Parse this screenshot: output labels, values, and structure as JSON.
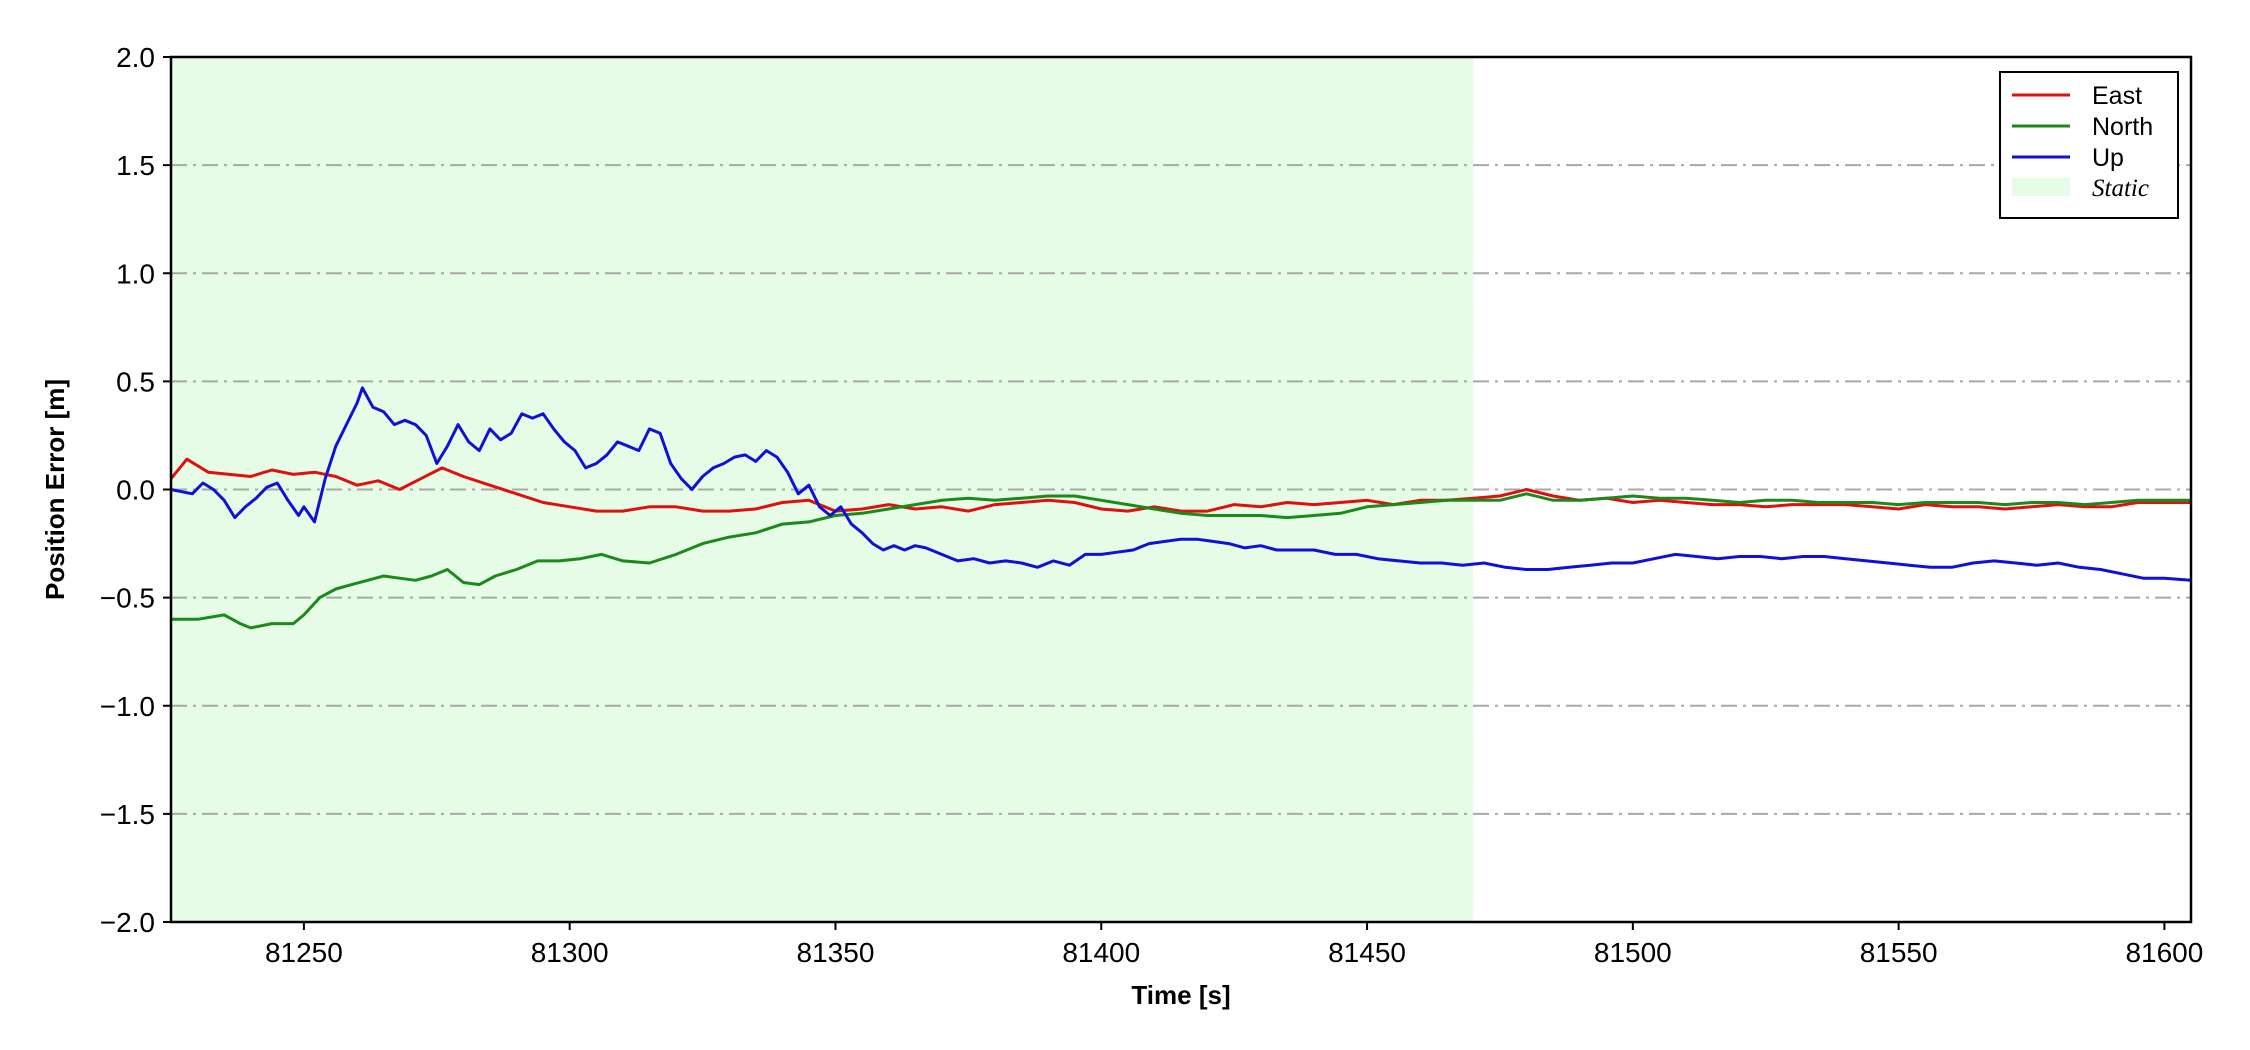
{
  "chart_data": {
    "type": "line",
    "xlabel": "Time [s]",
    "ylabel": "Position Error [m]",
    "xlim": [
      81225,
      81605
    ],
    "ylim": [
      -2.0,
      2.0
    ],
    "x_ticks": [
      81250,
      81300,
      81350,
      81400,
      81450,
      81500,
      81550,
      81600
    ],
    "y_ticks": [
      -2.0,
      -1.5,
      -1.0,
      -0.5,
      0.0,
      0.5,
      1.0,
      1.5,
      2.0
    ],
    "x_tick_labels": [
      "81250",
      "81300",
      "81350",
      "81400",
      "81450",
      "81500",
      "81550",
      "81600"
    ],
    "y_tick_labels": [
      "−2.0",
      "−1.5",
      "−1.0",
      "−0.5",
      "0.0",
      "0.5",
      "1.0",
      "1.5",
      "2.0"
    ],
    "grid": "horizontal dash-dot",
    "legend_position": "top-right",
    "shaded_region": {
      "label": "Static",
      "x_start": 81225,
      "x_end": 81470,
      "color": "#e6fce6"
    },
    "series": [
      {
        "name": "East",
        "color": "#e01010",
        "points": [
          [
            81225,
            0.05
          ],
          [
            81228,
            0.14
          ],
          [
            81232,
            0.08
          ],
          [
            81236,
            0.07
          ],
          [
            81240,
            0.06
          ],
          [
            81244,
            0.09
          ],
          [
            81248,
            0.07
          ],
          [
            81252,
            0.08
          ],
          [
            81256,
            0.06
          ],
          [
            81260,
            0.02
          ],
          [
            81264,
            0.04
          ],
          [
            81268,
            0.0
          ],
          [
            81272,
            0.05
          ],
          [
            81276,
            0.1
          ],
          [
            81280,
            0.06
          ],
          [
            81285,
            0.02
          ],
          [
            81290,
            -0.02
          ],
          [
            81295,
            -0.06
          ],
          [
            81300,
            -0.08
          ],
          [
            81305,
            -0.1
          ],
          [
            81310,
            -0.1
          ],
          [
            81315,
            -0.08
          ],
          [
            81320,
            -0.08
          ],
          [
            81325,
            -0.1
          ],
          [
            81330,
            -0.1
          ],
          [
            81335,
            -0.09
          ],
          [
            81340,
            -0.06
          ],
          [
            81345,
            -0.05
          ],
          [
            81350,
            -0.1
          ],
          [
            81355,
            -0.09
          ],
          [
            81360,
            -0.07
          ],
          [
            81365,
            -0.09
          ],
          [
            81370,
            -0.08
          ],
          [
            81375,
            -0.1
          ],
          [
            81380,
            -0.07
          ],
          [
            81385,
            -0.06
          ],
          [
            81390,
            -0.05
          ],
          [
            81395,
            -0.06
          ],
          [
            81400,
            -0.09
          ],
          [
            81405,
            -0.1
          ],
          [
            81410,
            -0.08
          ],
          [
            81415,
            -0.1
          ],
          [
            81420,
            -0.1
          ],
          [
            81425,
            -0.07
          ],
          [
            81430,
            -0.08
          ],
          [
            81435,
            -0.06
          ],
          [
            81440,
            -0.07
          ],
          [
            81445,
            -0.06
          ],
          [
            81450,
            -0.05
          ],
          [
            81455,
            -0.07
          ],
          [
            81460,
            -0.05
          ],
          [
            81465,
            -0.05
          ],
          [
            81470,
            -0.04
          ],
          [
            81475,
            -0.03
          ],
          [
            81480,
            0.0
          ],
          [
            81485,
            -0.03
          ],
          [
            81490,
            -0.05
          ],
          [
            81495,
            -0.04
          ],
          [
            81500,
            -0.06
          ],
          [
            81505,
            -0.05
          ],
          [
            81510,
            -0.06
          ],
          [
            81515,
            -0.07
          ],
          [
            81520,
            -0.07
          ],
          [
            81525,
            -0.08
          ],
          [
            81530,
            -0.07
          ],
          [
            81535,
            -0.07
          ],
          [
            81540,
            -0.07
          ],
          [
            81545,
            -0.08
          ],
          [
            81550,
            -0.09
          ],
          [
            81555,
            -0.07
          ],
          [
            81560,
            -0.08
          ],
          [
            81565,
            -0.08
          ],
          [
            81570,
            -0.09
          ],
          [
            81575,
            -0.08
          ],
          [
            81580,
            -0.07
          ],
          [
            81585,
            -0.08
          ],
          [
            81590,
            -0.08
          ],
          [
            81595,
            -0.06
          ],
          [
            81600,
            -0.06
          ],
          [
            81605,
            -0.06
          ]
        ]
      },
      {
        "name": "North",
        "color": "#1b8a1b",
        "points": [
          [
            81225,
            -0.6
          ],
          [
            81230,
            -0.6
          ],
          [
            81235,
            -0.58
          ],
          [
            81238,
            -0.62
          ],
          [
            81240,
            -0.64
          ],
          [
            81244,
            -0.62
          ],
          [
            81248,
            -0.62
          ],
          [
            81250,
            -0.58
          ],
          [
            81253,
            -0.5
          ],
          [
            81256,
            -0.46
          ],
          [
            81259,
            -0.44
          ],
          [
            81262,
            -0.42
          ],
          [
            81265,
            -0.4
          ],
          [
            81268,
            -0.41
          ],
          [
            81271,
            -0.42
          ],
          [
            81274,
            -0.4
          ],
          [
            81277,
            -0.37
          ],
          [
            81280,
            -0.43
          ],
          [
            81283,
            -0.44
          ],
          [
            81286,
            -0.4
          ],
          [
            81290,
            -0.37
          ],
          [
            81294,
            -0.33
          ],
          [
            81298,
            -0.33
          ],
          [
            81302,
            -0.32
          ],
          [
            81306,
            -0.3
          ],
          [
            81310,
            -0.33
          ],
          [
            81315,
            -0.34
          ],
          [
            81320,
            -0.3
          ],
          [
            81325,
            -0.25
          ],
          [
            81330,
            -0.22
          ],
          [
            81335,
            -0.2
          ],
          [
            81340,
            -0.16
          ],
          [
            81345,
            -0.15
          ],
          [
            81350,
            -0.12
          ],
          [
            81355,
            -0.11
          ],
          [
            81360,
            -0.09
          ],
          [
            81365,
            -0.07
          ],
          [
            81370,
            -0.05
          ],
          [
            81375,
            -0.04
          ],
          [
            81380,
            -0.05
          ],
          [
            81385,
            -0.04
          ],
          [
            81390,
            -0.03
          ],
          [
            81395,
            -0.03
          ],
          [
            81400,
            -0.05
          ],
          [
            81405,
            -0.07
          ],
          [
            81410,
            -0.09
          ],
          [
            81415,
            -0.11
          ],
          [
            81420,
            -0.12
          ],
          [
            81425,
            -0.12
          ],
          [
            81430,
            -0.12
          ],
          [
            81435,
            -0.13
          ],
          [
            81440,
            -0.12
          ],
          [
            81445,
            -0.11
          ],
          [
            81450,
            -0.08
          ],
          [
            81455,
            -0.07
          ],
          [
            81460,
            -0.06
          ],
          [
            81465,
            -0.05
          ],
          [
            81470,
            -0.05
          ],
          [
            81475,
            -0.05
          ],
          [
            81480,
            -0.02
          ],
          [
            81485,
            -0.05
          ],
          [
            81490,
            -0.05
          ],
          [
            81495,
            -0.04
          ],
          [
            81500,
            -0.03
          ],
          [
            81505,
            -0.04
          ],
          [
            81510,
            -0.04
          ],
          [
            81515,
            -0.05
          ],
          [
            81520,
            -0.06
          ],
          [
            81525,
            -0.05
          ],
          [
            81530,
            -0.05
          ],
          [
            81535,
            -0.06
          ],
          [
            81540,
            -0.06
          ],
          [
            81545,
            -0.06
          ],
          [
            81550,
            -0.07
          ],
          [
            81555,
            -0.06
          ],
          [
            81560,
            -0.06
          ],
          [
            81565,
            -0.06
          ],
          [
            81570,
            -0.07
          ],
          [
            81575,
            -0.06
          ],
          [
            81580,
            -0.06
          ],
          [
            81585,
            -0.07
          ],
          [
            81590,
            -0.06
          ],
          [
            81595,
            -0.05
          ],
          [
            81600,
            -0.05
          ],
          [
            81605,
            -0.05
          ]
        ]
      },
      {
        "name": "Up",
        "color": "#1010d8",
        "points": [
          [
            81225,
            0.0
          ],
          [
            81227,
            -0.01
          ],
          [
            81229,
            -0.02
          ],
          [
            81231,
            0.03
          ],
          [
            81233,
            0.0
          ],
          [
            81235,
            -0.05
          ],
          [
            81237,
            -0.13
          ],
          [
            81239,
            -0.08
          ],
          [
            81241,
            -0.04
          ],
          [
            81243,
            0.01
          ],
          [
            81245,
            0.03
          ],
          [
            81247,
            -0.05
          ],
          [
            81249,
            -0.12
          ],
          [
            81250,
            -0.08
          ],
          [
            81252,
            -0.15
          ],
          [
            81254,
            0.05
          ],
          [
            81256,
            0.2
          ],
          [
            81258,
            0.3
          ],
          [
            81260,
            0.4
          ],
          [
            81261,
            0.47
          ],
          [
            81263,
            0.38
          ],
          [
            81265,
            0.36
          ],
          [
            81267,
            0.3
          ],
          [
            81269,
            0.32
          ],
          [
            81271,
            0.3
          ],
          [
            81273,
            0.25
          ],
          [
            81275,
            0.12
          ],
          [
            81277,
            0.2
          ],
          [
            81279,
            0.3
          ],
          [
            81281,
            0.22
          ],
          [
            81283,
            0.18
          ],
          [
            81285,
            0.28
          ],
          [
            81287,
            0.23
          ],
          [
            81289,
            0.26
          ],
          [
            81291,
            0.35
          ],
          [
            81293,
            0.33
          ],
          [
            81295,
            0.35
          ],
          [
            81297,
            0.28
          ],
          [
            81299,
            0.22
          ],
          [
            81301,
            0.18
          ],
          [
            81303,
            0.1
          ],
          [
            81305,
            0.12
          ],
          [
            81307,
            0.16
          ],
          [
            81309,
            0.22
          ],
          [
            81311,
            0.2
          ],
          [
            81313,
            0.18
          ],
          [
            81315,
            0.28
          ],
          [
            81317,
            0.26
          ],
          [
            81319,
            0.12
          ],
          [
            81321,
            0.05
          ],
          [
            81323,
            0.0
          ],
          [
            81325,
            0.06
          ],
          [
            81327,
            0.1
          ],
          [
            81329,
            0.12
          ],
          [
            81331,
            0.15
          ],
          [
            81333,
            0.16
          ],
          [
            81335,
            0.13
          ],
          [
            81337,
            0.18
          ],
          [
            81339,
            0.15
          ],
          [
            81341,
            0.08
          ],
          [
            81343,
            -0.02
          ],
          [
            81345,
            0.02
          ],
          [
            81347,
            -0.08
          ],
          [
            81349,
            -0.12
          ],
          [
            81351,
            -0.08
          ],
          [
            81353,
            -0.16
          ],
          [
            81355,
            -0.2
          ],
          [
            81357,
            -0.25
          ],
          [
            81359,
            -0.28
          ],
          [
            81361,
            -0.26
          ],
          [
            81363,
            -0.28
          ],
          [
            81365,
            -0.26
          ],
          [
            81367,
            -0.27
          ],
          [
            81370,
            -0.3
          ],
          [
            81373,
            -0.33
          ],
          [
            81376,
            -0.32
          ],
          [
            81379,
            -0.34
          ],
          [
            81382,
            -0.33
          ],
          [
            81385,
            -0.34
          ],
          [
            81388,
            -0.36
          ],
          [
            81391,
            -0.33
          ],
          [
            81394,
            -0.35
          ],
          [
            81397,
            -0.3
          ],
          [
            81400,
            -0.3
          ],
          [
            81403,
            -0.29
          ],
          [
            81406,
            -0.28
          ],
          [
            81409,
            -0.25
          ],
          [
            81412,
            -0.24
          ],
          [
            81415,
            -0.23
          ],
          [
            81418,
            -0.23
          ],
          [
            81421,
            -0.24
          ],
          [
            81424,
            -0.25
          ],
          [
            81427,
            -0.27
          ],
          [
            81430,
            -0.26
          ],
          [
            81433,
            -0.28
          ],
          [
            81436,
            -0.28
          ],
          [
            81440,
            -0.28
          ],
          [
            81444,
            -0.3
          ],
          [
            81448,
            -0.3
          ],
          [
            81452,
            -0.32
          ],
          [
            81456,
            -0.33
          ],
          [
            81460,
            -0.34
          ],
          [
            81464,
            -0.34
          ],
          [
            81468,
            -0.35
          ],
          [
            81472,
            -0.34
          ],
          [
            81476,
            -0.36
          ],
          [
            81480,
            -0.37
          ],
          [
            81484,
            -0.37
          ],
          [
            81488,
            -0.36
          ],
          [
            81492,
            -0.35
          ],
          [
            81496,
            -0.34
          ],
          [
            81500,
            -0.34
          ],
          [
            81504,
            -0.32
          ],
          [
            81508,
            -0.3
          ],
          [
            81512,
            -0.31
          ],
          [
            81516,
            -0.32
          ],
          [
            81520,
            -0.31
          ],
          [
            81524,
            -0.31
          ],
          [
            81528,
            -0.32
          ],
          [
            81532,
            -0.31
          ],
          [
            81536,
            -0.31
          ],
          [
            81540,
            -0.32
          ],
          [
            81544,
            -0.33
          ],
          [
            81548,
            -0.34
          ],
          [
            81552,
            -0.35
          ],
          [
            81556,
            -0.36
          ],
          [
            81560,
            -0.36
          ],
          [
            81564,
            -0.34
          ],
          [
            81568,
            -0.33
          ],
          [
            81572,
            -0.34
          ],
          [
            81576,
            -0.35
          ],
          [
            81580,
            -0.34
          ],
          [
            81584,
            -0.36
          ],
          [
            81588,
            -0.37
          ],
          [
            81592,
            -0.39
          ],
          [
            81596,
            -0.41
          ],
          [
            81600,
            -0.41
          ],
          [
            81605,
            -0.42
          ]
        ]
      }
    ]
  }
}
